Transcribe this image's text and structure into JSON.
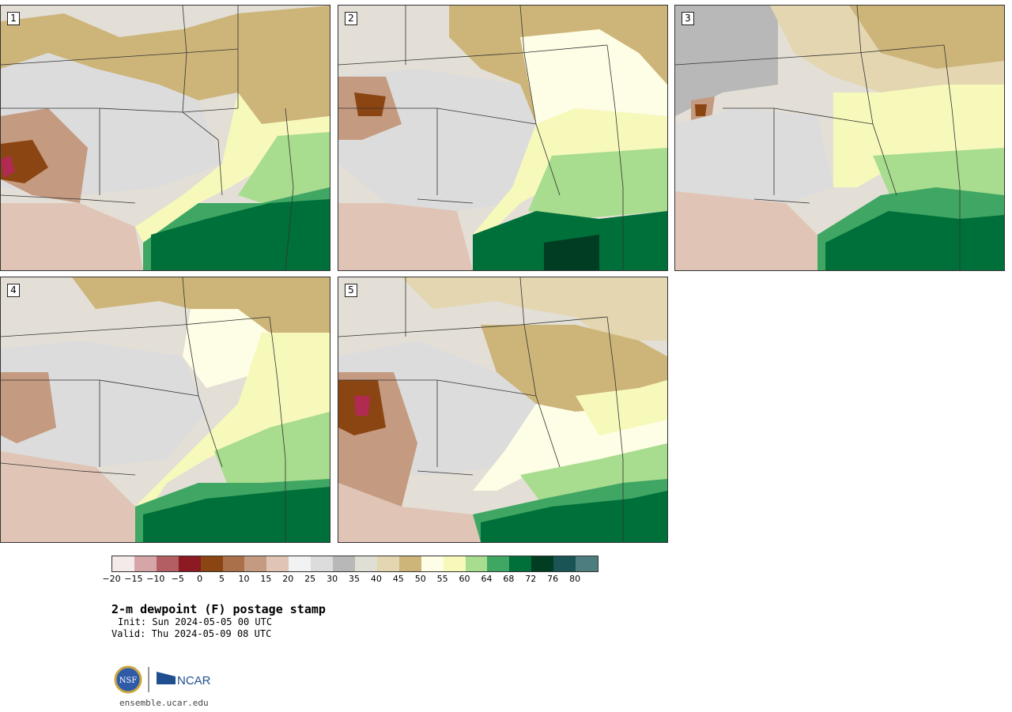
{
  "panels": [
    {
      "label": "1"
    },
    {
      "label": "2"
    },
    {
      "label": "3"
    },
    {
      "label": "4"
    },
    {
      "label": "5"
    }
  ],
  "colorbar": {
    "colors": [
      "#f4eaea",
      "#d6a5a7",
      "#b35e63",
      "#8b1a22",
      "#8b4513",
      "#a9704a",
      "#c49a80",
      "#e0c5b6",
      "#f2f2f2",
      "#dcdcdc",
      "#b8b8b8",
      "#e0dfd5",
      "#e3d6b0",
      "#cdb57a",
      "#fefde5",
      "#f7f9bb",
      "#a8dc8e",
      "#3fa763",
      "#00703a",
      "#003d22",
      "#1a5455",
      "#4d7d7f"
    ],
    "ticks": [
      "−20",
      "−15",
      "−10",
      "−5",
      "0",
      "5",
      "10",
      "15",
      "20",
      "25",
      "30",
      "35",
      "40",
      "45",
      "50",
      "55",
      "60",
      "64",
      "68",
      "72",
      "76",
      "80"
    ]
  },
  "title": "2-m dewpoint (F) postage stamp",
  "init": "Init: Sun 2024-05-05 00 UTC",
  "valid": "Valid: Thu 2024-05-09 08 UTC",
  "logos": {
    "nsf": "NSF",
    "ncar": "NCAR"
  },
  "site": "ensemble.ucar.edu"
}
